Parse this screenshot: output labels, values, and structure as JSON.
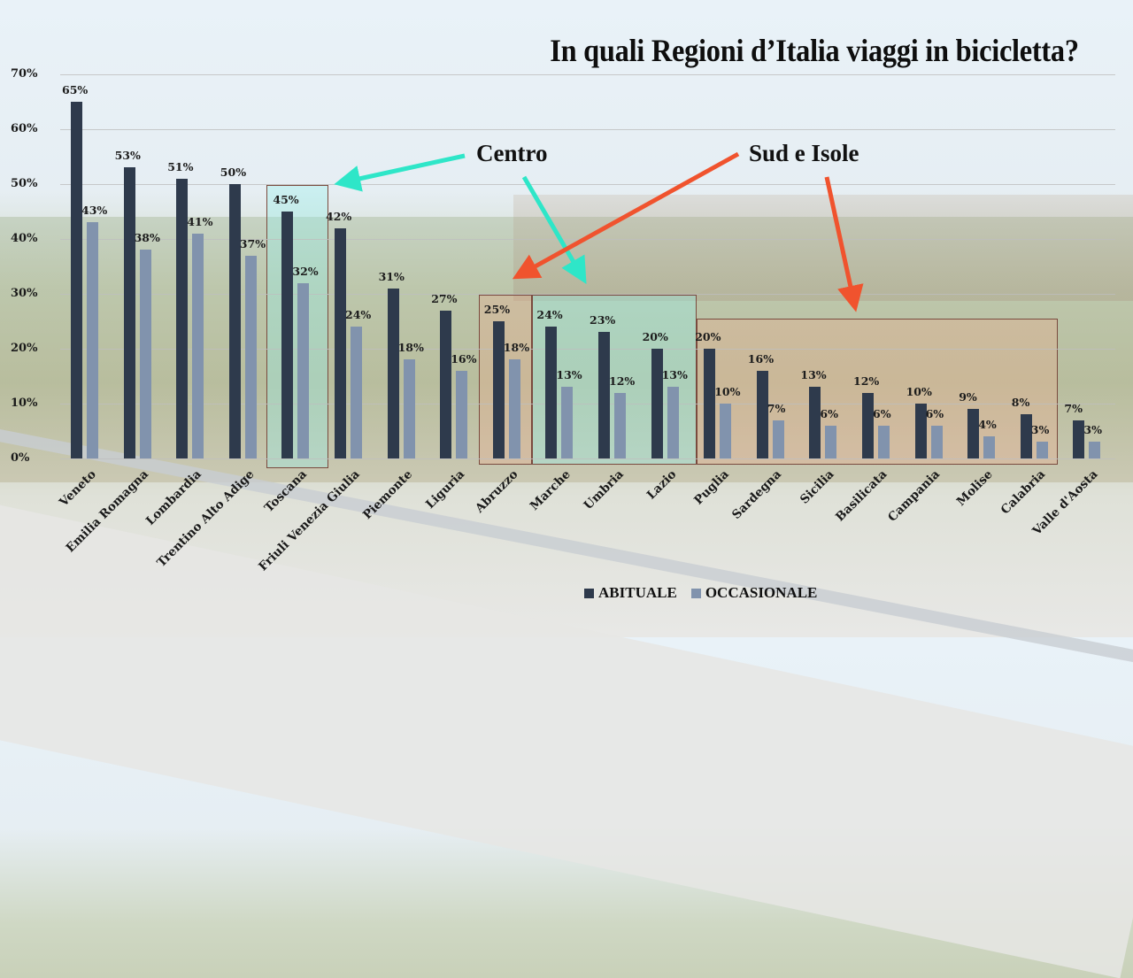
{
  "title": "In quali Regioni d’Italia viaggi in bicicletta?",
  "annotations": {
    "centro": "Centro",
    "sud": "Sud e Isole"
  },
  "legend": [
    {
      "label": "ABITUALE",
      "color": "#2e3a4c"
    },
    {
      "label": "OCCASIONALE",
      "color": "#8193ad"
    }
  ],
  "y_ticks": [
    "0%",
    "10%",
    "20%",
    "30%",
    "40%",
    "50%",
    "60%",
    "70%"
  ],
  "chart_data": {
    "type": "bar",
    "title": "In quali Regioni d’Italia viaggi in bicicletta?",
    "xlabel": "",
    "ylabel": "",
    "ylim": [
      0,
      70
    ],
    "grid": true,
    "legend_position": "bottom",
    "categories": [
      "Veneto",
      "Emilia Romagna",
      "Lombardia",
      "Trentino Alto Adige",
      "Toscana",
      "Friuli Venezia Giulia",
      "Piemonte",
      "Liguria",
      "Abruzzo",
      "Marche",
      "Umbria",
      "Lazio",
      "Puglia",
      "Sardegna",
      "Sicilia",
      "Basilicata",
      "Campania",
      "Molise",
      "Calabria",
      "Valle d'Aosta"
    ],
    "series": [
      {
        "name": "ABITUALE",
        "values": [
          65,
          53,
          51,
          50,
          45,
          42,
          31,
          27,
          25,
          24,
          23,
          20,
          20,
          16,
          13,
          12,
          10,
          9,
          8,
          7
        ]
      },
      {
        "name": "OCCASIONALE",
        "values": [
          43,
          38,
          41,
          37,
          32,
          24,
          18,
          16,
          18,
          13,
          12,
          13,
          10,
          7,
          6,
          6,
          6,
          4,
          3,
          3
        ]
      }
    ],
    "annotations": [
      {
        "text": "Centro",
        "regions": [
          "Toscana",
          "Marche",
          "Umbria",
          "Lazio"
        ],
        "color": "#2ee6c8"
      },
      {
        "text": "Sud e Isole",
        "regions": [
          "Abruzzo",
          "Puglia",
          "Sardegna",
          "Sicilia",
          "Basilicata",
          "Campania",
          "Molise",
          "Calabria"
        ],
        "color": "#f0532e"
      }
    ]
  }
}
